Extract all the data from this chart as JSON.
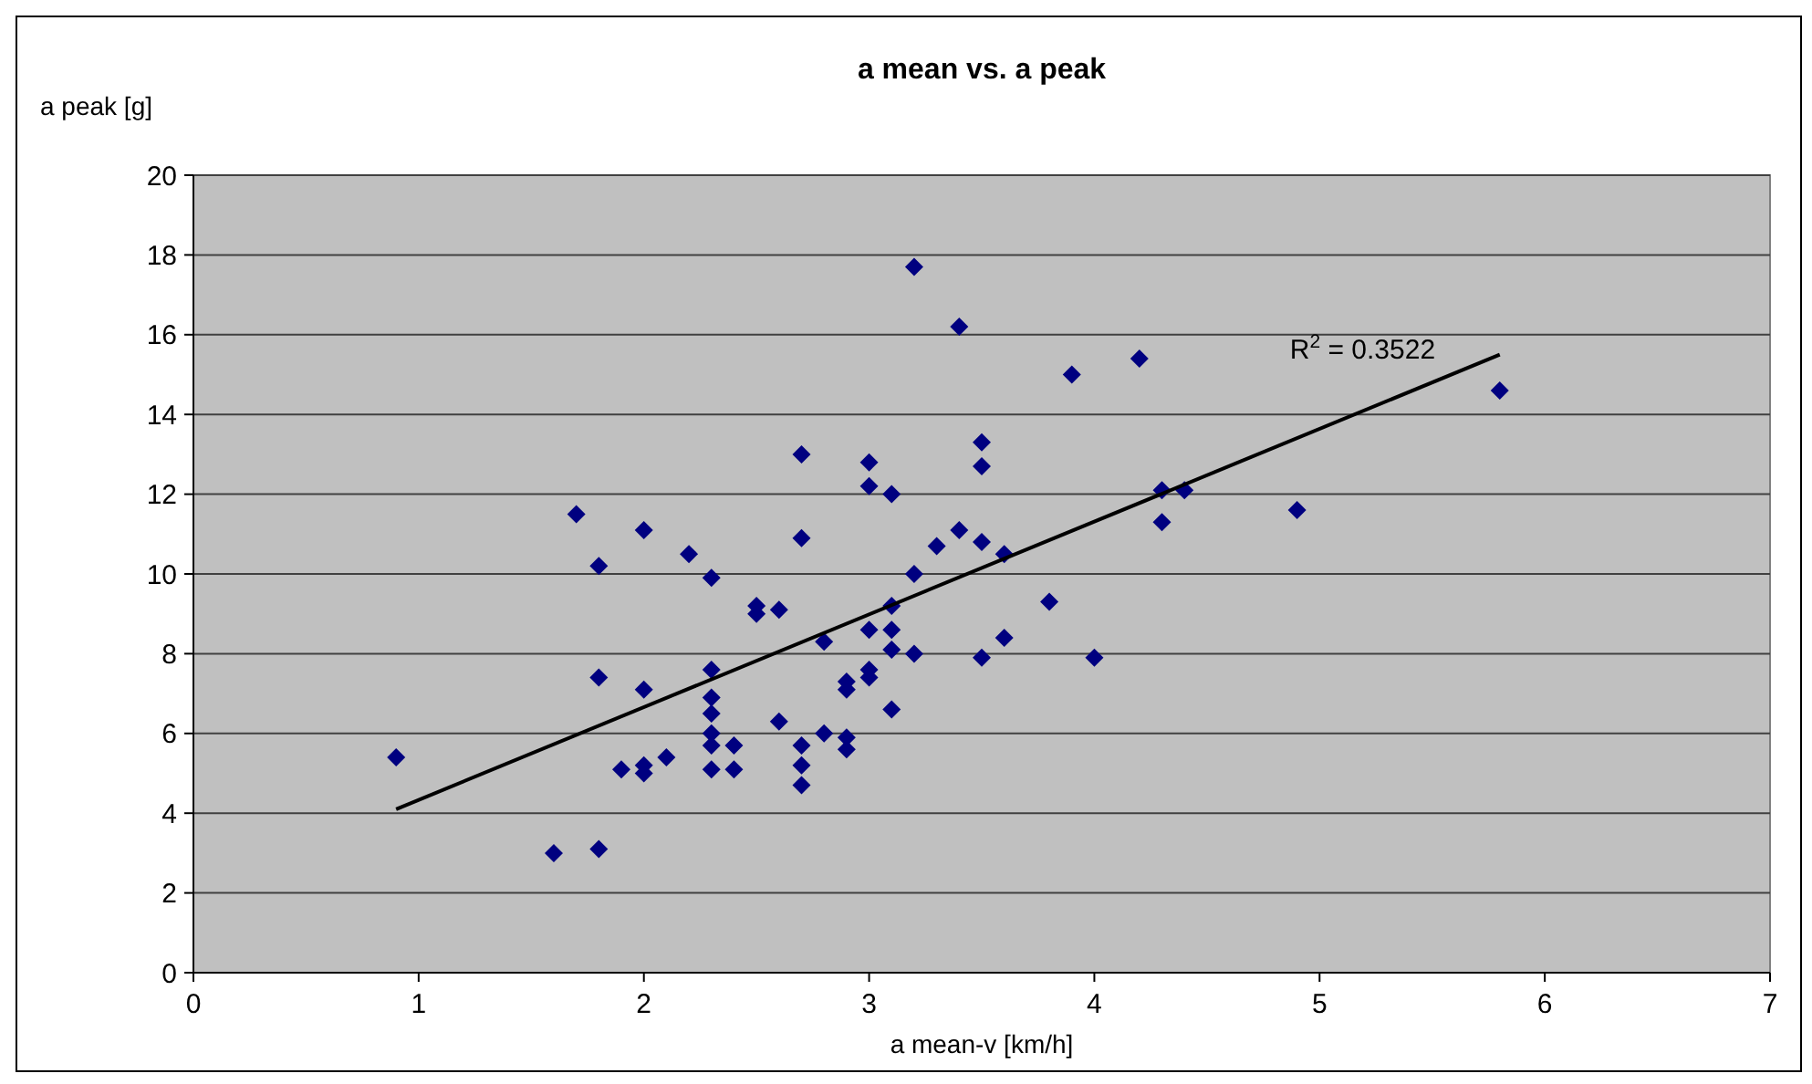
{
  "chart_data": {
    "type": "scatter",
    "title": "a mean vs. a peak",
    "xlabel": "a mean-v [km/h]",
    "ylabel": "a peak [g]",
    "xlim": [
      0,
      7
    ],
    "xticks": [
      0,
      1,
      2,
      3,
      4,
      5,
      6,
      7
    ],
    "ylim": [
      0,
      20
    ],
    "yticks": [
      0,
      2,
      4,
      6,
      8,
      10,
      12,
      14,
      16,
      18,
      20
    ],
    "grid": "y",
    "marker": "diamond",
    "annotations": [
      "R$^{2}$ = 0.3522"
    ],
    "series": [
      {
        "color": "#000080",
        "x": [
          0.9,
          1.6,
          1.7,
          1.8,
          1.8,
          1.8,
          1.9,
          2.0,
          2.0,
          2.0,
          2.0,
          2.1,
          2.2,
          2.3,
          2.3,
          2.3,
          2.3,
          2.3,
          2.3,
          2.3,
          2.4,
          2.4,
          2.5,
          2.5,
          2.6,
          2.6,
          2.7,
          2.7,
          2.7,
          2.7,
          2.7,
          2.8,
          2.8,
          2.9,
          2.9,
          2.9,
          2.9,
          3.0,
          3.0,
          3.0,
          3.0,
          3.0,
          3.1,
          3.1,
          3.1,
          3.1,
          3.1,
          3.2,
          3.2,
          3.2,
          3.3,
          3.4,
          3.4,
          3.5,
          3.5,
          3.5,
          3.5,
          3.6,
          3.6,
          3.8,
          3.9,
          4.0,
          4.2,
          4.3,
          4.3,
          4.4,
          4.9,
          5.8
        ],
        "values": [
          5.4,
          3.0,
          11.5,
          10.2,
          7.4,
          3.1,
          5.1,
          11.1,
          7.1,
          5.2,
          5.0,
          5.4,
          10.5,
          9.9,
          7.6,
          6.9,
          6.5,
          6.0,
          5.7,
          5.1,
          5.7,
          5.1,
          9.2,
          9.0,
          9.1,
          6.3,
          13.0,
          10.9,
          5.7,
          5.2,
          4.7,
          8.3,
          6.0,
          7.3,
          7.1,
          5.9,
          5.6,
          12.8,
          12.2,
          8.6,
          7.6,
          7.4,
          12.0,
          9.2,
          8.6,
          8.1,
          6.6,
          17.7,
          10.0,
          8.0,
          10.7,
          16.2,
          11.1,
          13.3,
          12.7,
          10.8,
          7.9,
          10.5,
          8.4,
          9.3,
          15.0,
          7.9,
          15.4,
          12.1,
          11.3,
          12.1,
          11.6,
          14.6
        ]
      },
      {
        "type": "line",
        "color": "#000000",
        "x": [
          0.9,
          5.8
        ],
        "values": [
          4.1,
          15.5
        ],
        "line_style": "solid",
        "marker": "none"
      }
    ]
  }
}
